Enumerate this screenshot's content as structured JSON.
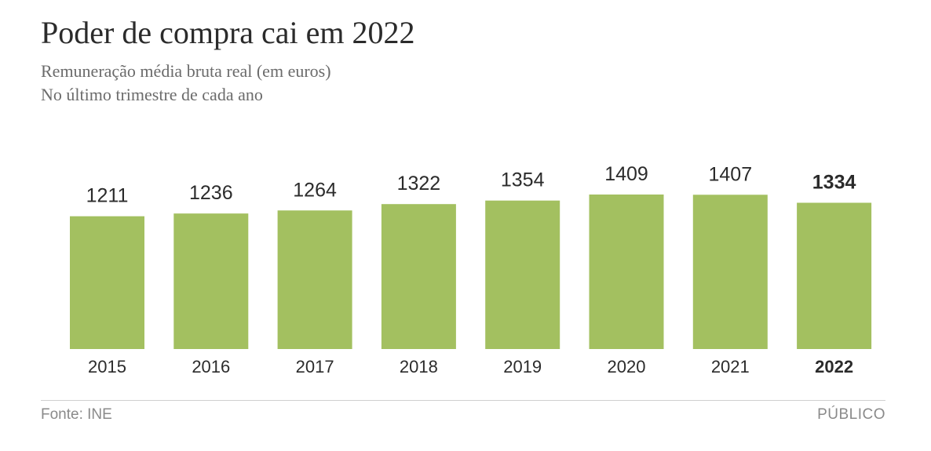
{
  "header": {
    "title": "Poder de compra cai em 2022",
    "subtitle_line1": "Remuneração média bruta real (em euros)",
    "subtitle_line2": "No último trimestre de cada ano"
  },
  "footer": {
    "source": "Fonte: INE",
    "brand": "PÚBLICO"
  },
  "colors": {
    "bar": "#a3c060",
    "text": "#2b2b2b"
  },
  "chart_data": {
    "type": "bar",
    "categories": [
      "2015",
      "2016",
      "2017",
      "2018",
      "2019",
      "2020",
      "2021",
      "2022"
    ],
    "values": [
      1211,
      1236,
      1264,
      1322,
      1354,
      1409,
      1407,
      1334
    ],
    "value_labels": [
      "1211",
      "1236",
      "1264",
      "1322",
      "1354",
      "1409",
      "1407",
      "1334"
    ],
    "highlight_category": "2022",
    "ylim": [
      0,
      1409
    ],
    "grid": false,
    "legend": "none"
  }
}
